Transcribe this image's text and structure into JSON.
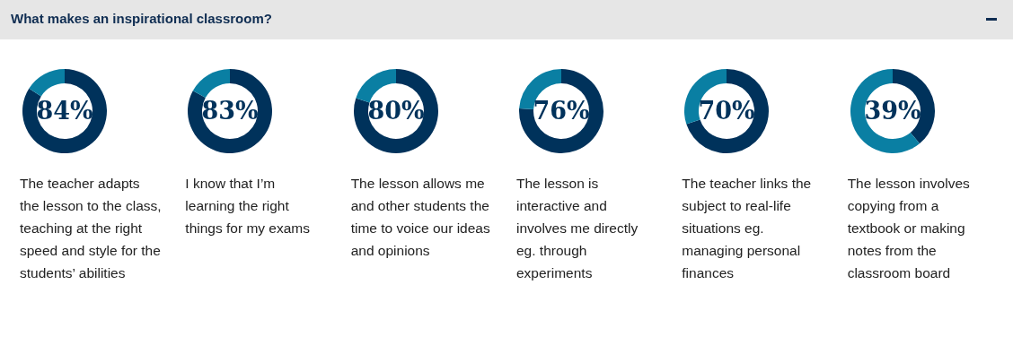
{
  "chart_data": [
    {
      "type": "donut",
      "title": "What makes an inspirational classroom?",
      "xlabel": "The teacher adapts the lesson to the class, teaching at the right speed and style for the students’ abilities",
      "categories": [
        null,
        null
      ],
      "values": [
        84,
        16
      ],
      "colors": [
        "#00325b",
        "#0a7fa3"
      ],
      "value_labels": [
        "84%",
        null
      ]
    },
    {
      "type": "donut",
      "xlabel": "I know that I’m learning the right things for my exams",
      "categories": [
        null,
        null
      ],
      "values": [
        83,
        17
      ],
      "colors": [
        "#00325b",
        "#0a7fa3"
      ],
      "value_labels": [
        "83%",
        null
      ]
    },
    {
      "type": "donut",
      "xlabel": "The lesson allows me and other students the time to voice our ideas and opinions",
      "categories": [
        null,
        null
      ],
      "values": [
        80,
        20
      ],
      "colors": [
        "#00325b",
        "#0a7fa3"
      ],
      "value_labels": [
        "80%",
        null
      ]
    },
    {
      "type": "donut",
      "xlabel": "The lesson is interactive and involves me directly eg. through experiments",
      "categories": [
        null,
        null
      ],
      "values": [
        76,
        24
      ],
      "colors": [
        "#00325b",
        "#0a7fa3"
      ],
      "value_labels": [
        "76%",
        null
      ]
    },
    {
      "type": "donut",
      "xlabel": "The teacher links the subject to real-life situations eg. managing personal finances",
      "categories": [
        null,
        null
      ],
      "values": [
        70,
        30
      ],
      "colors": [
        "#00325b",
        "#0a7fa3"
      ],
      "value_labels": [
        "70%",
        null
      ]
    },
    {
      "type": "donut",
      "xlabel": "The lesson involves copying from a textbook or making notes from the classroom board",
      "categories": [
        null,
        null
      ],
      "values": [
        39,
        61
      ],
      "colors": [
        "#00325b",
        "#0a7fa3"
      ],
      "value_labels": [
        "39%",
        null
      ]
    }
  ]
}
